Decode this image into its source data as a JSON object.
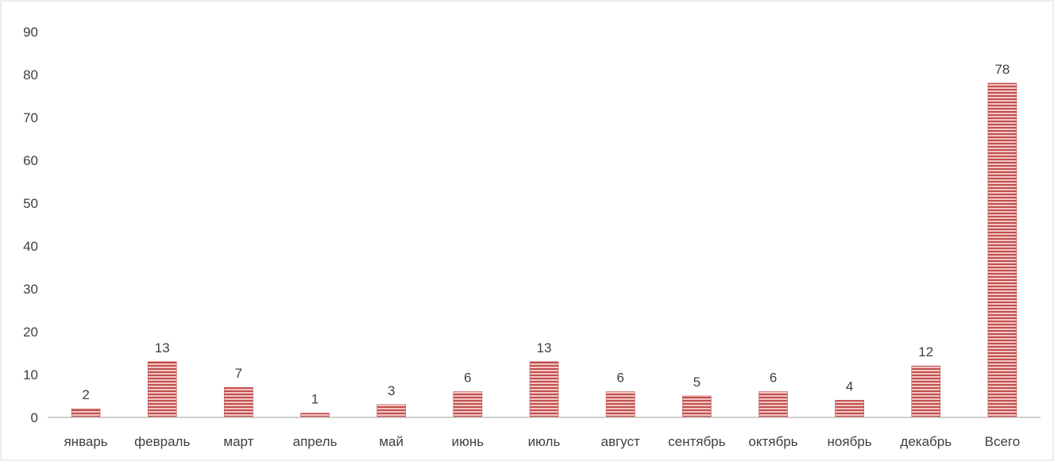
{
  "chart_data": {
    "type": "bar",
    "title": "",
    "xlabel": "",
    "ylabel": "",
    "categories": [
      "январь",
      "февраль",
      "март",
      "апрель",
      "май",
      "июнь",
      "июль",
      "август",
      "сентябрь",
      "октябрь",
      "ноябрь",
      "декабрь",
      "Всего"
    ],
    "values": [
      2,
      13,
      7,
      1,
      3,
      6,
      13,
      6,
      5,
      6,
      4,
      12,
      78
    ],
    "ylim": [
      0,
      90
    ],
    "yticks": [
      0,
      10,
      20,
      30,
      40,
      50,
      60,
      70,
      80,
      90
    ],
    "grid": false,
    "legend": "none",
    "colors": {
      "bar_fill": "#f4c6c6",
      "bar_stripe": "#c0504d",
      "axis": "#bfbfbf",
      "text": "#404040"
    }
  }
}
